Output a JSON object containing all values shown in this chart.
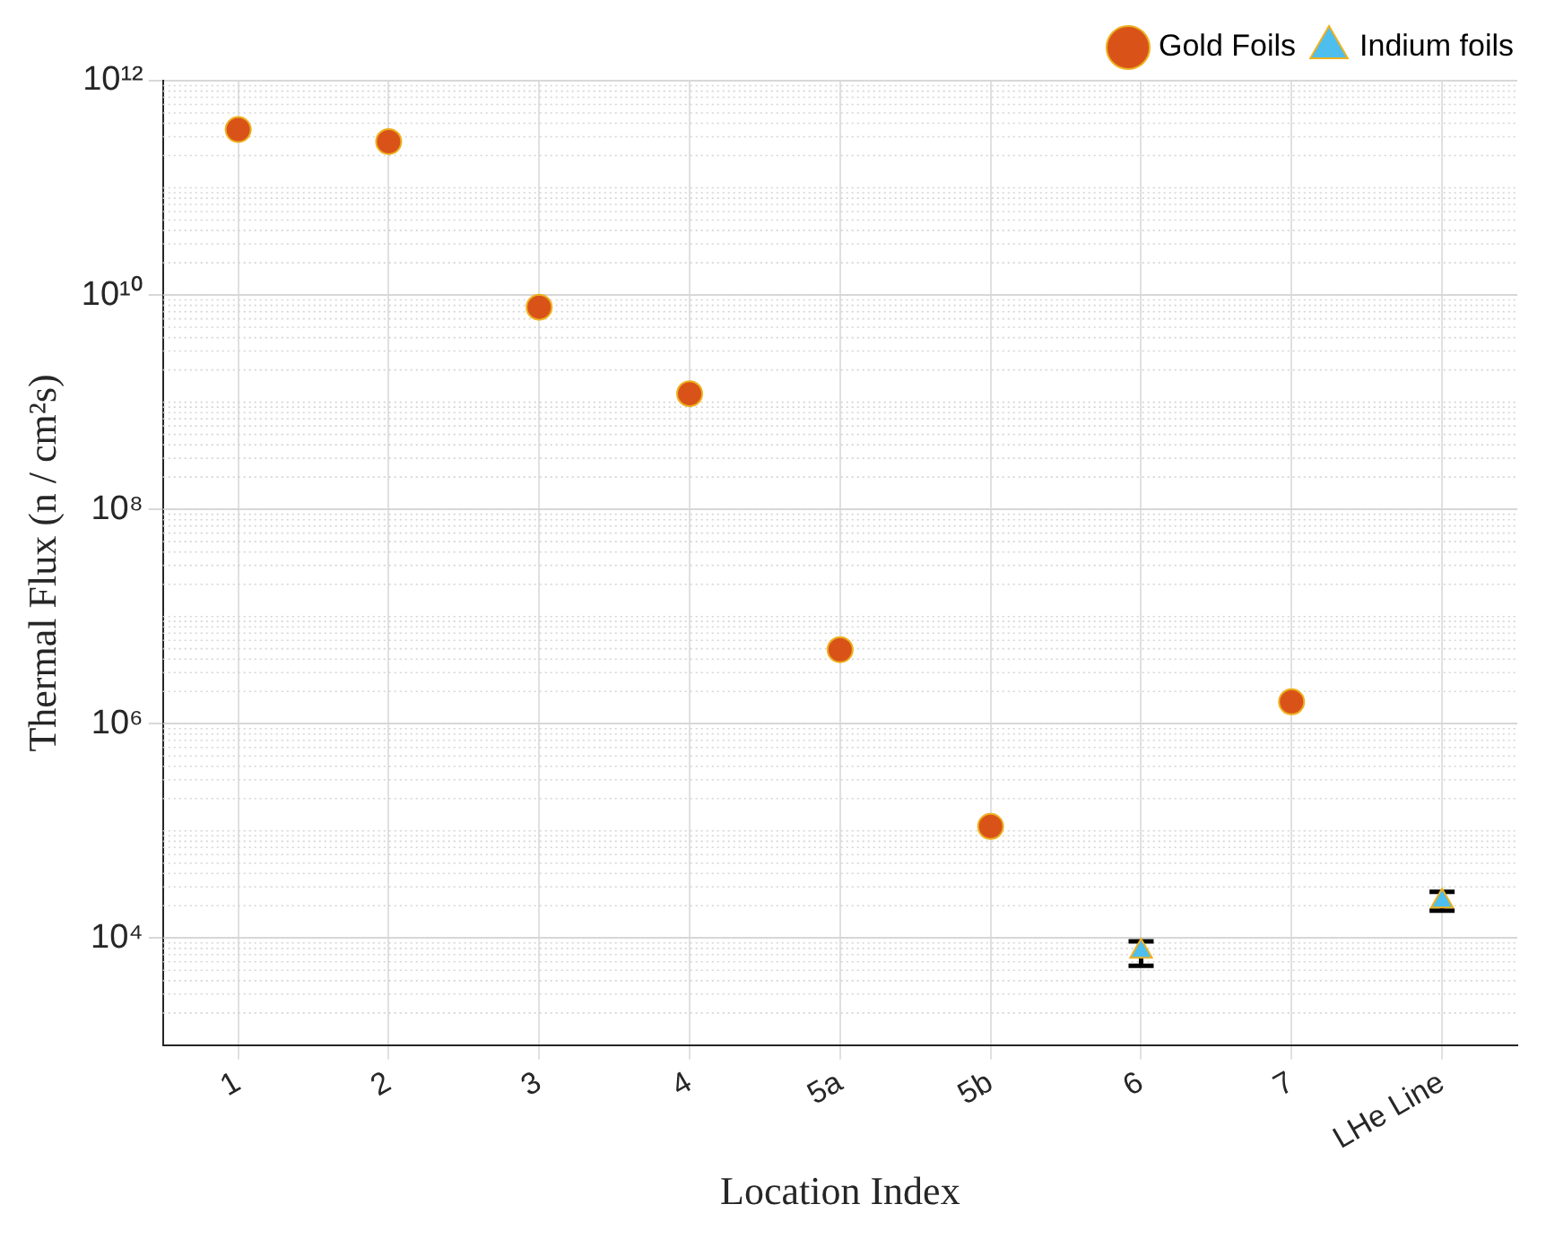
{
  "chart_data": {
    "type": "scatter",
    "xlabel": "Location Index",
    "ylabel": "Thermal Flux (n / cm²s)",
    "categories": [
      "1",
      "2",
      "3",
      "4",
      "5a",
      "5b",
      "6",
      "7",
      "LHe Line"
    ],
    "series": [
      {
        "name": "Gold Foils",
        "color": "#d95319",
        "marker": "circle",
        "x": [
          "1",
          "2",
          "3",
          "4",
          "5a",
          "5b",
          "7"
        ],
        "values": [
          350000000000,
          270000000000,
          7700000000,
          1200000000,
          4900000,
          110000,
          1600000
        ]
      },
      {
        "name": "Indium foils",
        "color": "#4dbeee",
        "marker": "triangle",
        "x": [
          "6",
          "LHe Line"
        ],
        "values": [
          7500,
          22000
        ],
        "errors": [
          [
            5500,
            9300
          ],
          [
            18000,
            27000
          ]
        ]
      }
    ],
    "log": "y",
    "ylim": [
      1000,
      1000000000000
    ],
    "yticks": [
      {
        "value": 10000,
        "label": "10⁴"
      },
      {
        "value": 1000000,
        "label": "10⁶"
      },
      {
        "value": 100000000,
        "label": "10⁸"
      },
      {
        "value": 10000000000,
        "label": "10¹⁰"
      },
      {
        "value": 1000000000000,
        "label": "10¹²"
      }
    ],
    "grid": true,
    "legend": "top right"
  }
}
